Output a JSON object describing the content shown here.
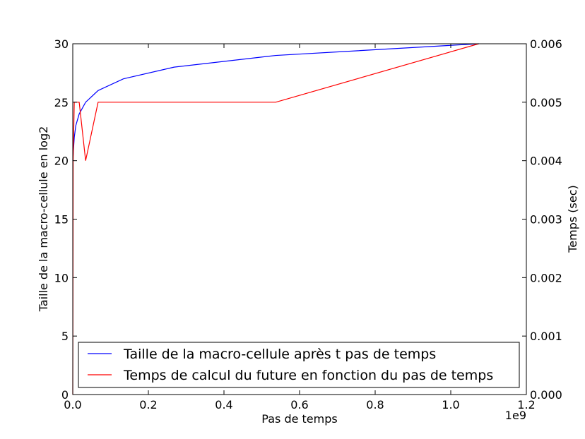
{
  "chart_data": {
    "type": "line",
    "xlabel": "Pas de temps",
    "x_offset_label": "1e9",
    "ylabel_left": "Taille de la macro-cellule en log2",
    "ylabel_right": "Temps (sec)",
    "xlim": [
      0,
      1.2
    ],
    "ylim_left": [
      0,
      30
    ],
    "ylim_right": [
      0,
      0.006
    ],
    "x_ticks": [
      "0.0",
      "0.2",
      "0.4",
      "0.6",
      "0.8",
      "1.0",
      "1.2"
    ],
    "y_ticks_left": [
      "0",
      "5",
      "10",
      "15",
      "20",
      "25",
      "30"
    ],
    "y_ticks_right": [
      "0.000",
      "0.001",
      "0.002",
      "0.003",
      "0.004",
      "0.005",
      "0.006"
    ],
    "legend_position": "lower-left",
    "series": [
      {
        "name": "Taille de la macro-cellule après t pas de temps",
        "axis": "left",
        "color": "#0000ff",
        "x": [
          0,
          0.002,
          0.004,
          0.008,
          0.017,
          0.034,
          0.067,
          0.134,
          0.268,
          0.537,
          1.074
        ],
        "y": [
          20,
          21,
          22,
          23,
          24,
          25,
          26,
          27,
          28,
          29,
          30
        ]
      },
      {
        "name": "Temps de calcul du future en fonction du pas de temps",
        "axis": "right",
        "color": "#ff0000",
        "x": [
          0,
          0.001,
          0.004,
          0.008,
          0.017,
          0.034,
          0.067,
          0.134,
          0.268,
          0.537,
          1.074
        ],
        "y": [
          0,
          0.004,
          0.005,
          0.005,
          0.005,
          0.004,
          0.005,
          0.005,
          0.005,
          0.005,
          0.006
        ]
      }
    ]
  }
}
